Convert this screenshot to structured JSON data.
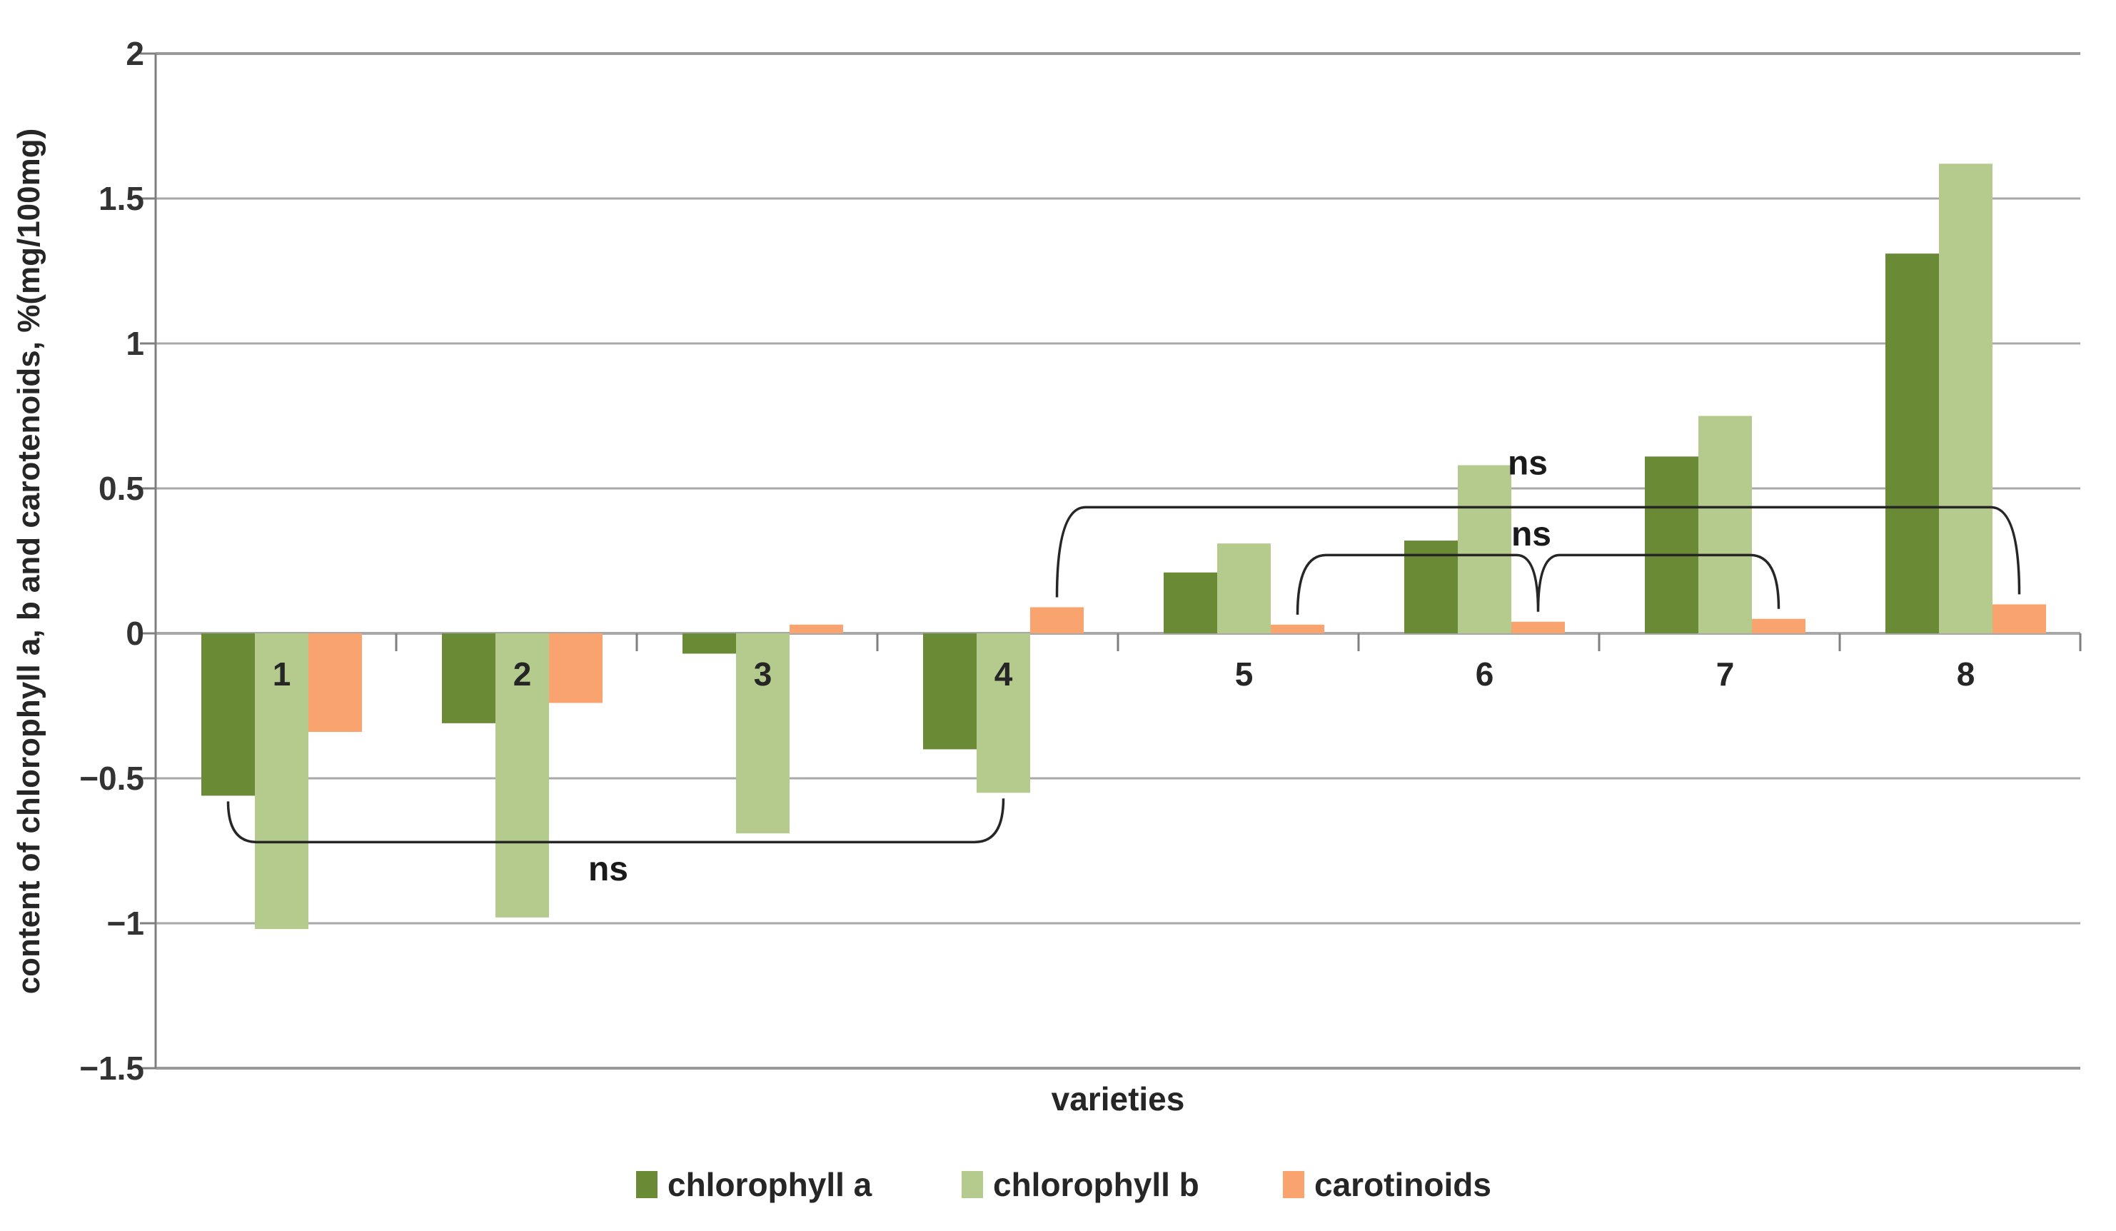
{
  "chart_data": {
    "type": "bar",
    "title": "",
    "xlabel": "varieties",
    "ylabel": "content of chlorophyll a, b and carotenoids, %(mg/100mg)",
    "ylim": [
      -1.5,
      2
    ],
    "yticks": [
      2,
      1.5,
      1,
      0.5,
      0,
      -0.5,
      -1,
      -1.5
    ],
    "grid": "horizontal",
    "legend_position": "bottom",
    "categories": [
      "1",
      "2",
      "3",
      "4",
      "5",
      "6",
      "7",
      "8"
    ],
    "series": [
      {
        "name": "chlorophyll a",
        "color": "#6a8a36",
        "values": [
          -0.56,
          -0.31,
          -0.07,
          -0.4,
          0.21,
          0.32,
          0.61,
          1.31
        ]
      },
      {
        "name": "chlorophyll b",
        "color": "#b5cb8e",
        "values": [
          -1.02,
          -0.98,
          -0.69,
          -0.55,
          0.31,
          0.58,
          0.75,
          1.62
        ]
      },
      {
        "name": "carotinoids",
        "color": "#f9a46e",
        "values": [
          -0.34,
          -0.24,
          0.03,
          0.09,
          0.03,
          0.04,
          0.05,
          0.1
        ]
      }
    ],
    "annotations": [
      {
        "text": "ns",
        "side": "below",
        "line_y": -0.72,
        "attach": [
          {
            "cat": 1,
            "series": 0
          },
          {
            "cat": 4,
            "series": 1
          }
        ],
        "label_x": 852,
        "label_y": -0.81
      },
      {
        "text": "ns",
        "side": "above",
        "line_y": 0.435,
        "attach": [
          {
            "cat": 4,
            "series": 2
          },
          {
            "cat": 8,
            "series": 2
          }
        ],
        "label_x": 2140,
        "label_y": 0.59
      },
      {
        "text": "ns",
        "side": "above",
        "line_y": 0.27,
        "attach": [
          {
            "cat": 5,
            "series": 2
          },
          {
            "cat": 6,
            "series": 2
          },
          {
            "cat": 7,
            "series": 2
          }
        ],
        "label_x": 2145,
        "label_y": 0.345
      }
    ],
    "colors": {
      "grid": "#a8a8a8",
      "plot_border": "#999999",
      "axis": "#7f7f7f",
      "text": "#262626",
      "bracket": "#262626"
    }
  }
}
